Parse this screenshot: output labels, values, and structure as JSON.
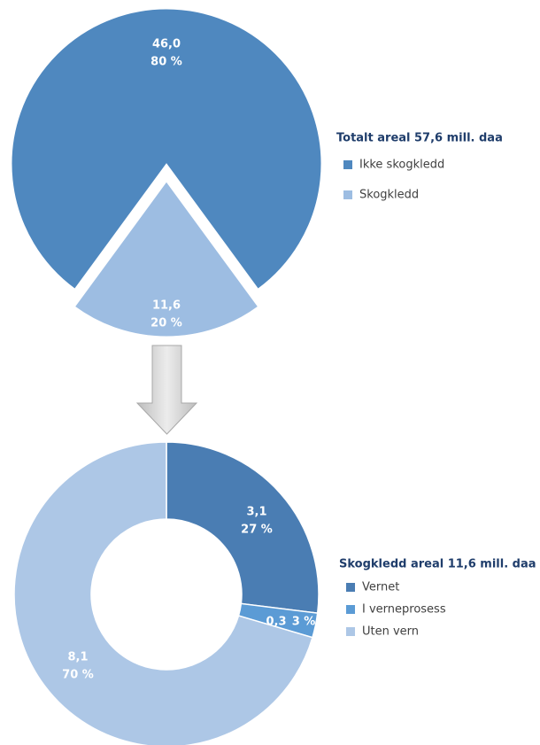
{
  "chart_data": [
    {
      "type": "pie",
      "legend_title": "Totalt areal 57,6 mill. daa",
      "categories": [
        "Ikke skogkledd",
        "Skogkledd"
      ],
      "values": [
        46.0,
        11.6
      ],
      "value_labels": [
        "46,0",
        "11,6"
      ],
      "percents": [
        80,
        20
      ],
      "percent_labels": [
        "80 %",
        "20 %"
      ],
      "colors": [
        "#4f88bf",
        "#9dbde2"
      ]
    },
    {
      "type": "donut",
      "legend_title": "Skogkledd areal 11,6 mill. daa",
      "categories": [
        "Vernet",
        "I verneprosess",
        "Uten vern"
      ],
      "values": [
        3.1,
        0.3,
        8.1
      ],
      "value_labels": [
        "3,1",
        "0,3",
        "8,1"
      ],
      "percents": [
        27,
        3,
        70
      ],
      "percent_labels": [
        "27 %",
        "3 %",
        "70 %"
      ],
      "colors": [
        "#4a7db3",
        "#5b9bd5",
        "#adc7e6"
      ]
    }
  ]
}
